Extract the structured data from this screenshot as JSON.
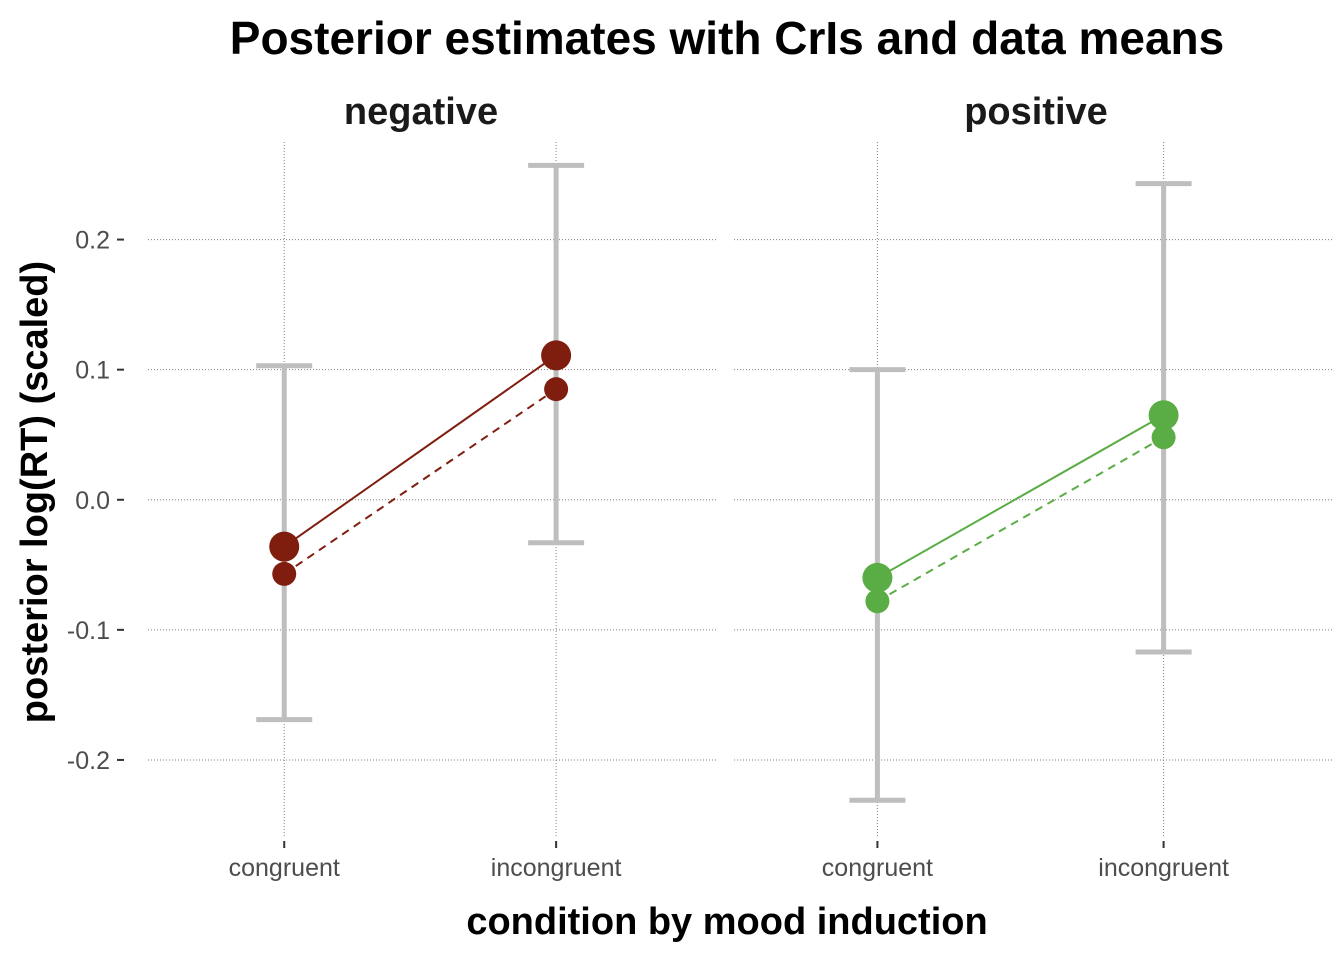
{
  "chart_data": {
    "type": "scatter",
    "title": "Posterior estimates with CrIs and data means",
    "xlabel": "condition by mood induction",
    "ylabel": "posterior log(RT) (scaled)",
    "categories": [
      "congruent",
      "incongruent"
    ],
    "ylim": [
      -0.26,
      0.275
    ],
    "yticks": [
      -0.2,
      -0.1,
      0.0,
      0.1,
      0.2
    ],
    "ytick_labels": [
      "-0.2",
      "-0.1",
      "0.0",
      "0.1",
      "0.2"
    ],
    "grid": true,
    "legend": "none",
    "panels": [
      {
        "name": "negative",
        "color": "#7f1d0f",
        "posterior_mean": [
          -0.036,
          0.111
        ],
        "cri_lower": [
          -0.169,
          -0.033
        ],
        "cri_upper": [
          0.103,
          0.257
        ],
        "data_mean": [
          -0.057,
          0.085
        ]
      },
      {
        "name": "positive",
        "color": "#5aac44",
        "posterior_mean": [
          -0.06,
          0.065
        ],
        "cri_lower": [
          -0.231,
          -0.117
        ],
        "cri_upper": [
          0.1,
          0.243
        ],
        "data_mean": [
          -0.078,
          0.048
        ]
      }
    ]
  }
}
